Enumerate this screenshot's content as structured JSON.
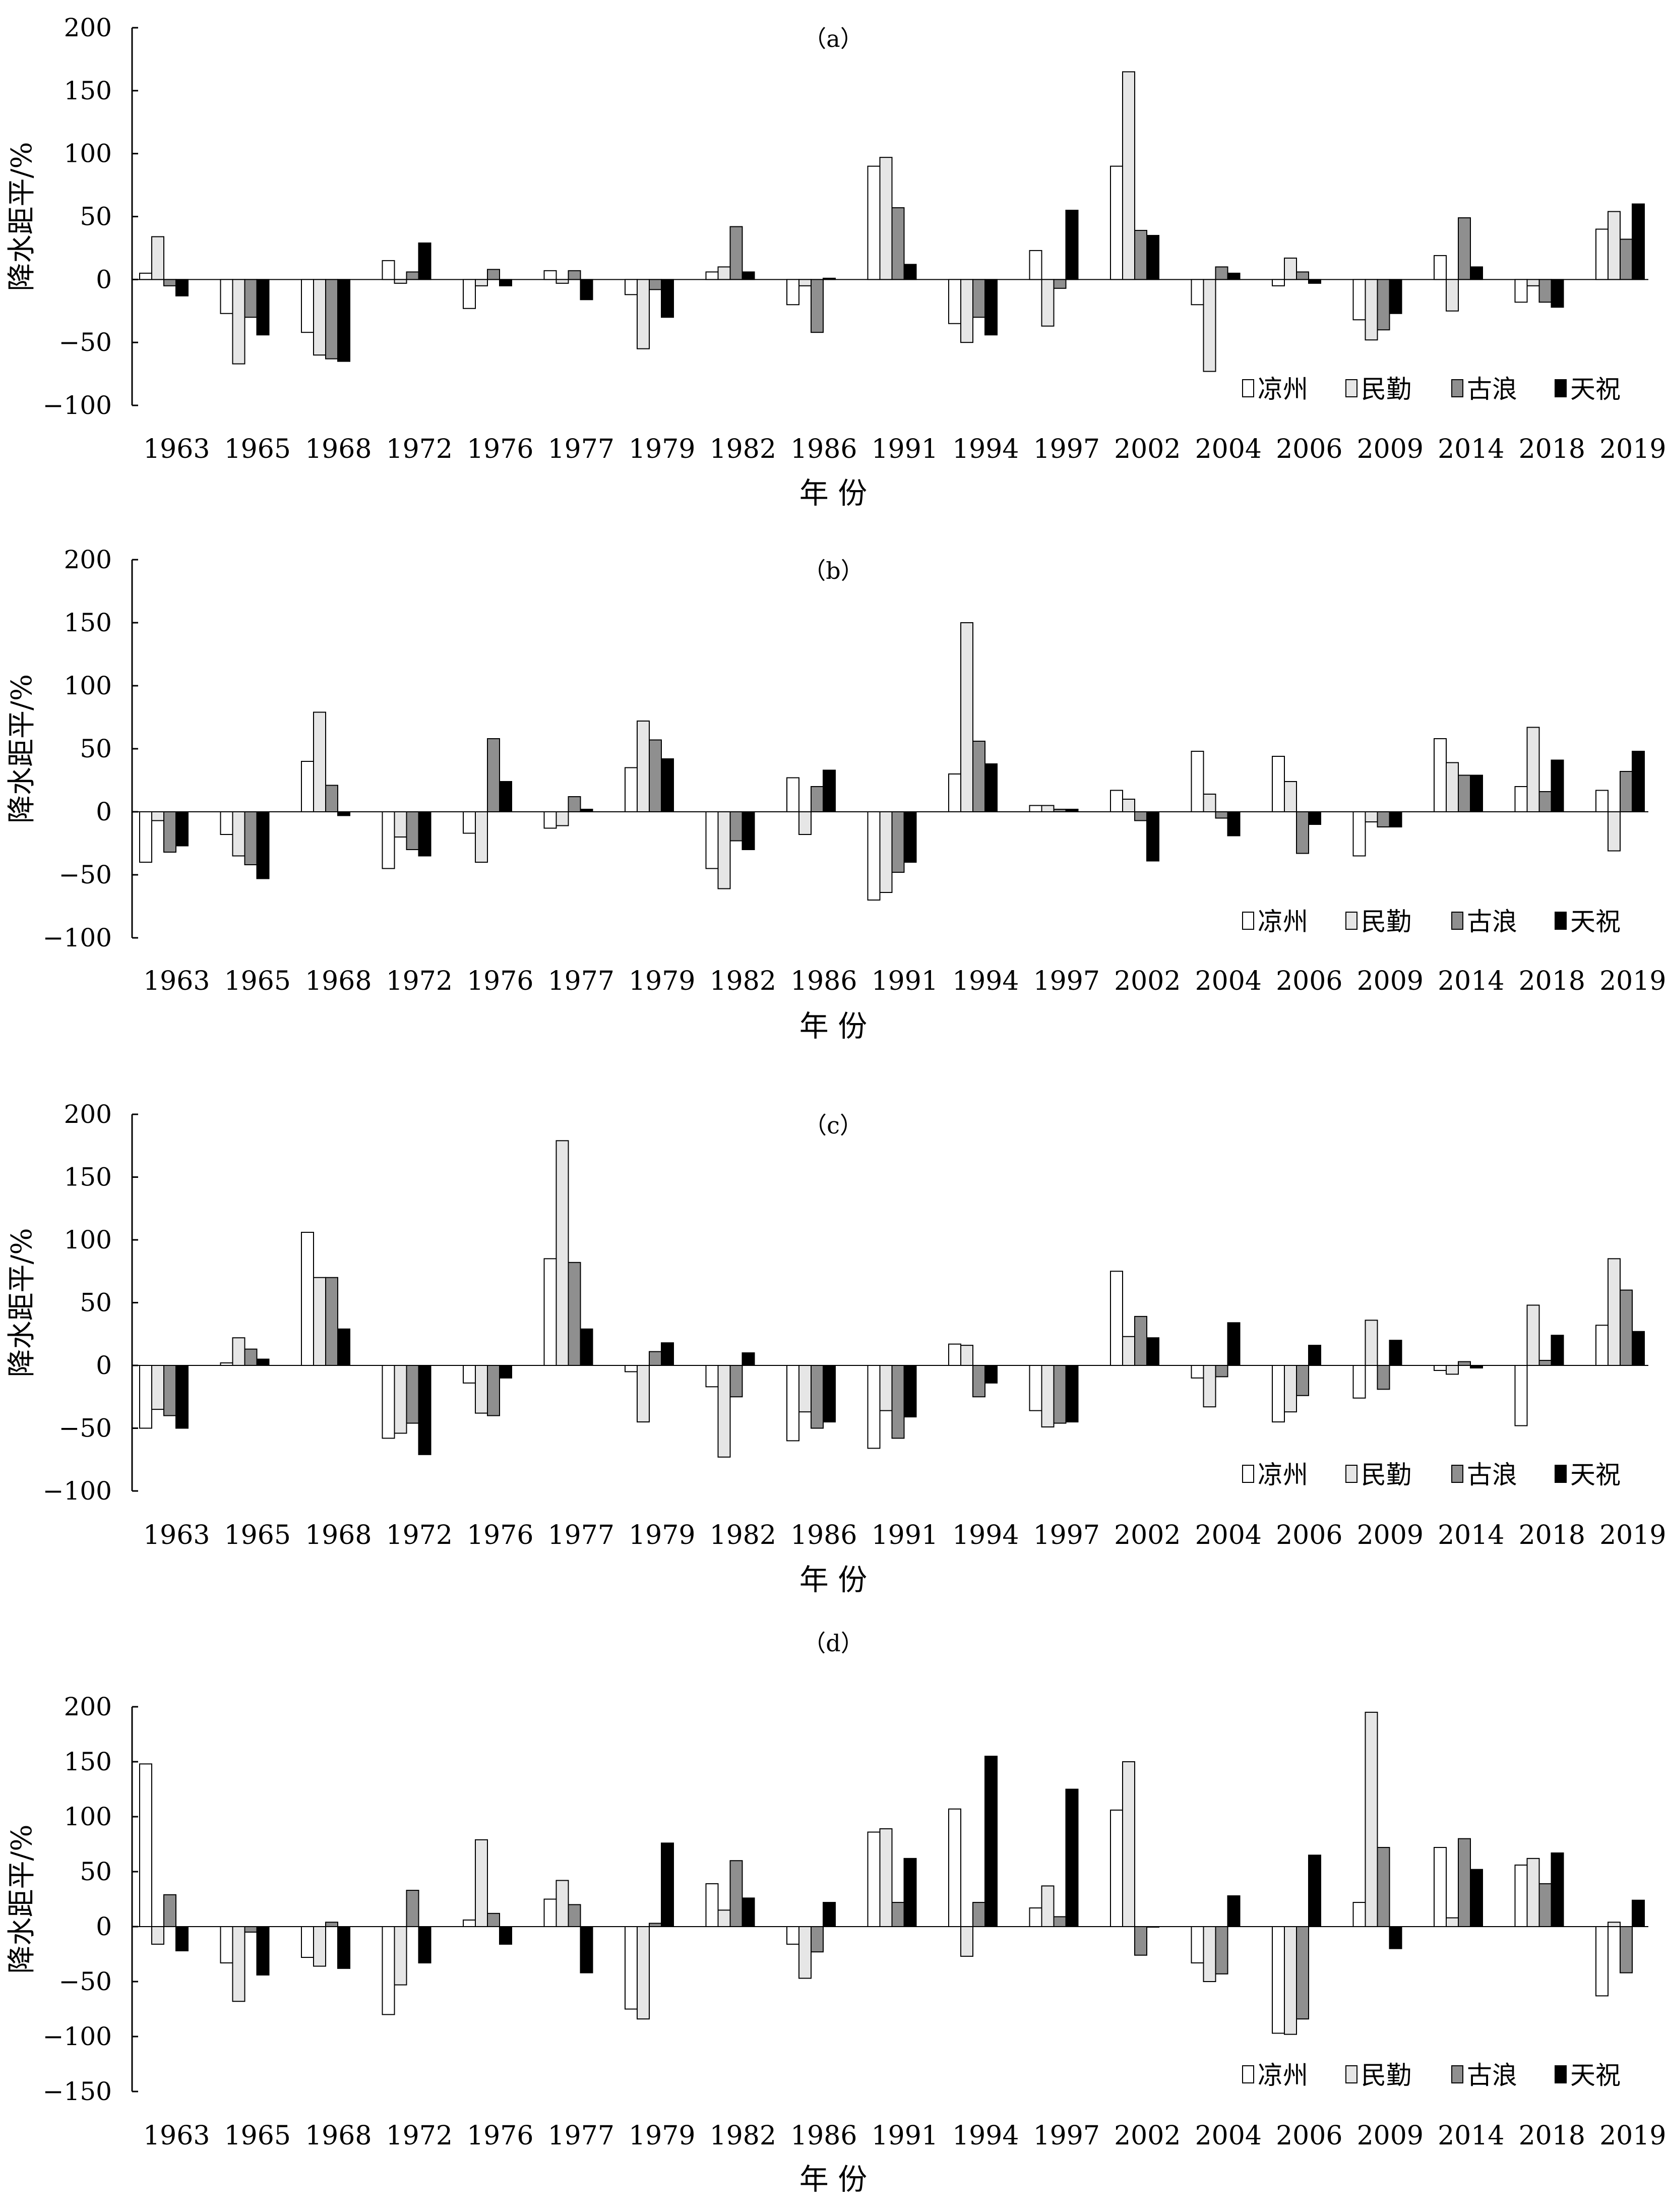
{
  "chart_data": [
    {
      "type": "bar",
      "title": "（a）",
      "xlabel": "年 份",
      "ylabel": "降水距平/%",
      "ylim": [
        -100,
        200
      ],
      "yticks": [
        -100,
        -50,
        0,
        50,
        100,
        150,
        200
      ],
      "grid": false,
      "legend_position": "bottom-right",
      "categories": [
        "1963",
        "1965",
        "1968",
        "1972",
        "1976",
        "1977",
        "1979",
        "1982",
        "1986",
        "1991",
        "1994",
        "1997",
        "2002",
        "2004",
        "2006",
        "2009",
        "2014",
        "2018",
        "2019"
      ],
      "series": [
        {
          "name": "凉州",
          "color": "#ffffff",
          "values": [
            5,
            -27,
            -42,
            15,
            -23,
            7,
            -12,
            6,
            -20,
            90,
            -35,
            23,
            90,
            -20,
            -5,
            -32,
            19,
            -18,
            40
          ]
        },
        {
          "name": "民勤",
          "color": "#e6e6e6",
          "values": [
            34,
            -67,
            -60,
            -3,
            -5,
            -3,
            -55,
            10,
            -5,
            97,
            -50,
            -37,
            165,
            -73,
            17,
            -48,
            -25,
            -5,
            54
          ]
        },
        {
          "name": "古浪",
          "color": "#8f8f8f",
          "values": [
            -5,
            -30,
            -63,
            6,
            8,
            7,
            -8,
            42,
            -42,
            57,
            -30,
            -7,
            39,
            10,
            6,
            -40,
            49,
            -18,
            32
          ]
        },
        {
          "name": "天祝",
          "color": "#000000",
          "values": [
            -13,
            -44,
            -65,
            29,
            -5,
            -16,
            -30,
            6,
            1,
            12,
            -44,
            55,
            35,
            5,
            -3,
            -27,
            10,
            -22,
            60
          ]
        }
      ]
    },
    {
      "type": "bar",
      "title": "（b）",
      "xlabel": "年 份",
      "ylabel": "降水距平/%",
      "ylim": [
        -100,
        200
      ],
      "yticks": [
        -100,
        -50,
        0,
        50,
        100,
        150,
        200
      ],
      "grid": false,
      "legend_position": "bottom-right",
      "categories": [
        "1963",
        "1965",
        "1968",
        "1972",
        "1976",
        "1977",
        "1979",
        "1982",
        "1986",
        "1991",
        "1994",
        "1997",
        "2002",
        "2004",
        "2006",
        "2009",
        "2014",
        "2018",
        "2019"
      ],
      "series": [
        {
          "name": "凉州",
          "color": "#ffffff",
          "values": [
            -40,
            -18,
            40,
            -45,
            -17,
            -13,
            35,
            -45,
            27,
            -70,
            30,
            5,
            17,
            48,
            44,
            -35,
            58,
            20,
            17
          ]
        },
        {
          "name": "民勤",
          "color": "#e6e6e6",
          "values": [
            -7,
            -35,
            79,
            -20,
            -40,
            -11,
            72,
            -61,
            -18,
            -64,
            150,
            5,
            10,
            14,
            24,
            -8,
            39,
            67,
            -31
          ]
        },
        {
          "name": "古浪",
          "color": "#8f8f8f",
          "values": [
            -32,
            -42,
            21,
            -30,
            58,
            12,
            57,
            -23,
            20,
            -48,
            56,
            2,
            -7,
            -5,
            -33,
            -12,
            29,
            16,
            32
          ]
        },
        {
          "name": "天祝",
          "color": "#000000",
          "values": [
            -27,
            -53,
            -3,
            -35,
            24,
            2,
            42,
            -30,
            33,
            -40,
            38,
            2,
            -39,
            -19,
            -10,
            -12,
            29,
            41,
            48
          ]
        }
      ]
    },
    {
      "type": "bar",
      "title": "（c）",
      "xlabel": "年 份",
      "ylabel": "降水距平/%",
      "ylim": [
        -100,
        200
      ],
      "yticks": [
        -100,
        -50,
        0,
        50,
        100,
        150,
        200
      ],
      "grid": false,
      "legend_position": "bottom-right",
      "categories": [
        "1963",
        "1965",
        "1968",
        "1972",
        "1976",
        "1977",
        "1979",
        "1982",
        "1986",
        "1991",
        "1994",
        "1997",
        "2002",
        "2004",
        "2006",
        "2009",
        "2014",
        "2018",
        "2019"
      ],
      "series": [
        {
          "name": "凉州",
          "color": "#ffffff",
          "values": [
            -50,
            2,
            106,
            -58,
            -14,
            85,
            -5,
            -17,
            -60,
            -66,
            17,
            -36,
            75,
            -10,
            -45,
            -26,
            -4,
            -48,
            32
          ]
        },
        {
          "name": "民勤",
          "color": "#e6e6e6",
          "values": [
            -35,
            22,
            70,
            -54,
            -38,
            179,
            -45,
            -73,
            -37,
            -36,
            16,
            -49,
            23,
            -33,
            -37,
            36,
            -7,
            48,
            85
          ]
        },
        {
          "name": "古浪",
          "color": "#8f8f8f",
          "values": [
            -40,
            13,
            70,
            -46,
            -40,
            82,
            11,
            -25,
            -50,
            -58,
            -25,
            -46,
            39,
            -9,
            -24,
            -19,
            3,
            4,
            60
          ]
        },
        {
          "name": "天祝",
          "color": "#000000",
          "values": [
            -50,
            5,
            29,
            -71,
            -10,
            29,
            18,
            10,
            -45,
            -41,
            -14,
            -45,
            22,
            34,
            16,
            20,
            -2,
            24,
            27
          ]
        }
      ]
    },
    {
      "type": "bar",
      "title": "（d）",
      "xlabel": "年 份",
      "ylabel": "降水距平/%",
      "ylim": [
        -150,
        200
      ],
      "yticks": [
        -150,
        -100,
        -50,
        0,
        50,
        100,
        150,
        200
      ],
      "grid": false,
      "legend_position": "bottom-right",
      "categories": [
        "1963",
        "1965",
        "1968",
        "1972",
        "1976",
        "1977",
        "1979",
        "1982",
        "1986",
        "1991",
        "1994",
        "1997",
        "2002",
        "2004",
        "2006",
        "2009",
        "2014",
        "2018",
        "2019"
      ],
      "series": [
        {
          "name": "凉州",
          "color": "#ffffff",
          "values": [
            148,
            -33,
            -28,
            -80,
            6,
            25,
            -75,
            39,
            -16,
            86,
            107,
            17,
            106,
            -33,
            -97,
            22,
            72,
            56,
            -63
          ]
        },
        {
          "name": "民勤",
          "color": "#e6e6e6",
          "values": [
            -16,
            -68,
            -36,
            -53,
            79,
            42,
            -84,
            15,
            -47,
            89,
            -27,
            37,
            150,
            -50,
            -98,
            195,
            8,
            62,
            4
          ]
        },
        {
          "name": "古浪",
          "color": "#8f8f8f",
          "values": [
            29,
            -5,
            4,
            33,
            12,
            20,
            3,
            60,
            -23,
            22,
            22,
            9,
            -26,
            -43,
            -84,
            72,
            80,
            39,
            -42
          ]
        },
        {
          "name": "天祝",
          "color": "#000000",
          "values": [
            -22,
            -44,
            -38,
            -33,
            -16,
            -42,
            76,
            26,
            22,
            62,
            155,
            125,
            0,
            28,
            65,
            -20,
            52,
            67,
            24
          ]
        }
      ]
    }
  ]
}
